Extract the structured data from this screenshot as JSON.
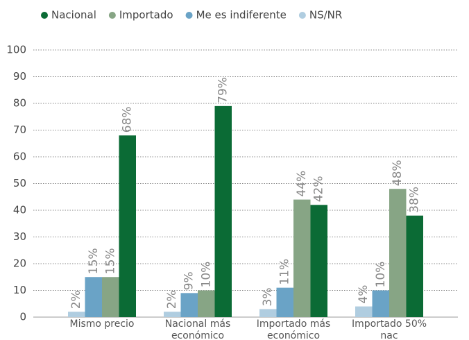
{
  "chart_data": {
    "type": "bar",
    "categories": [
      "Mismo precio",
      "Nacional más económico",
      "Importado más económico",
      "Importado 50% nac"
    ],
    "series": [
      {
        "name": "NS/NR",
        "color": "#b0cde0",
        "values": [
          2,
          2,
          3,
          4
        ],
        "value_labels": [
          "2%",
          "2%",
          "3%",
          "4%"
        ]
      },
      {
        "name": "Me es indiferente",
        "color": "#6aa3c6",
        "values": [
          15,
          9,
          11,
          10
        ],
        "value_labels": [
          "15%",
          "9%",
          "11%",
          "10%"
        ]
      },
      {
        "name": "Importado",
        "color": "#87a585",
        "values": [
          15,
          10,
          44,
          48
        ],
        "value_labels": [
          "15%",
          "10%",
          "44%",
          "48%"
        ]
      },
      {
        "name": "Nacional",
        "color": "#0b6b35",
        "values": [
          68,
          79,
          42,
          38
        ],
        "value_labels": [
          "68%",
          "79%",
          "42%",
          "38%"
        ]
      }
    ],
    "legend_order": [
      3,
      2,
      1,
      0
    ],
    "ylim": [
      0,
      100
    ],
    "yticks": [
      0,
      10,
      20,
      30,
      40,
      50,
      60,
      70,
      80,
      90,
      100
    ],
    "grid": true
  }
}
